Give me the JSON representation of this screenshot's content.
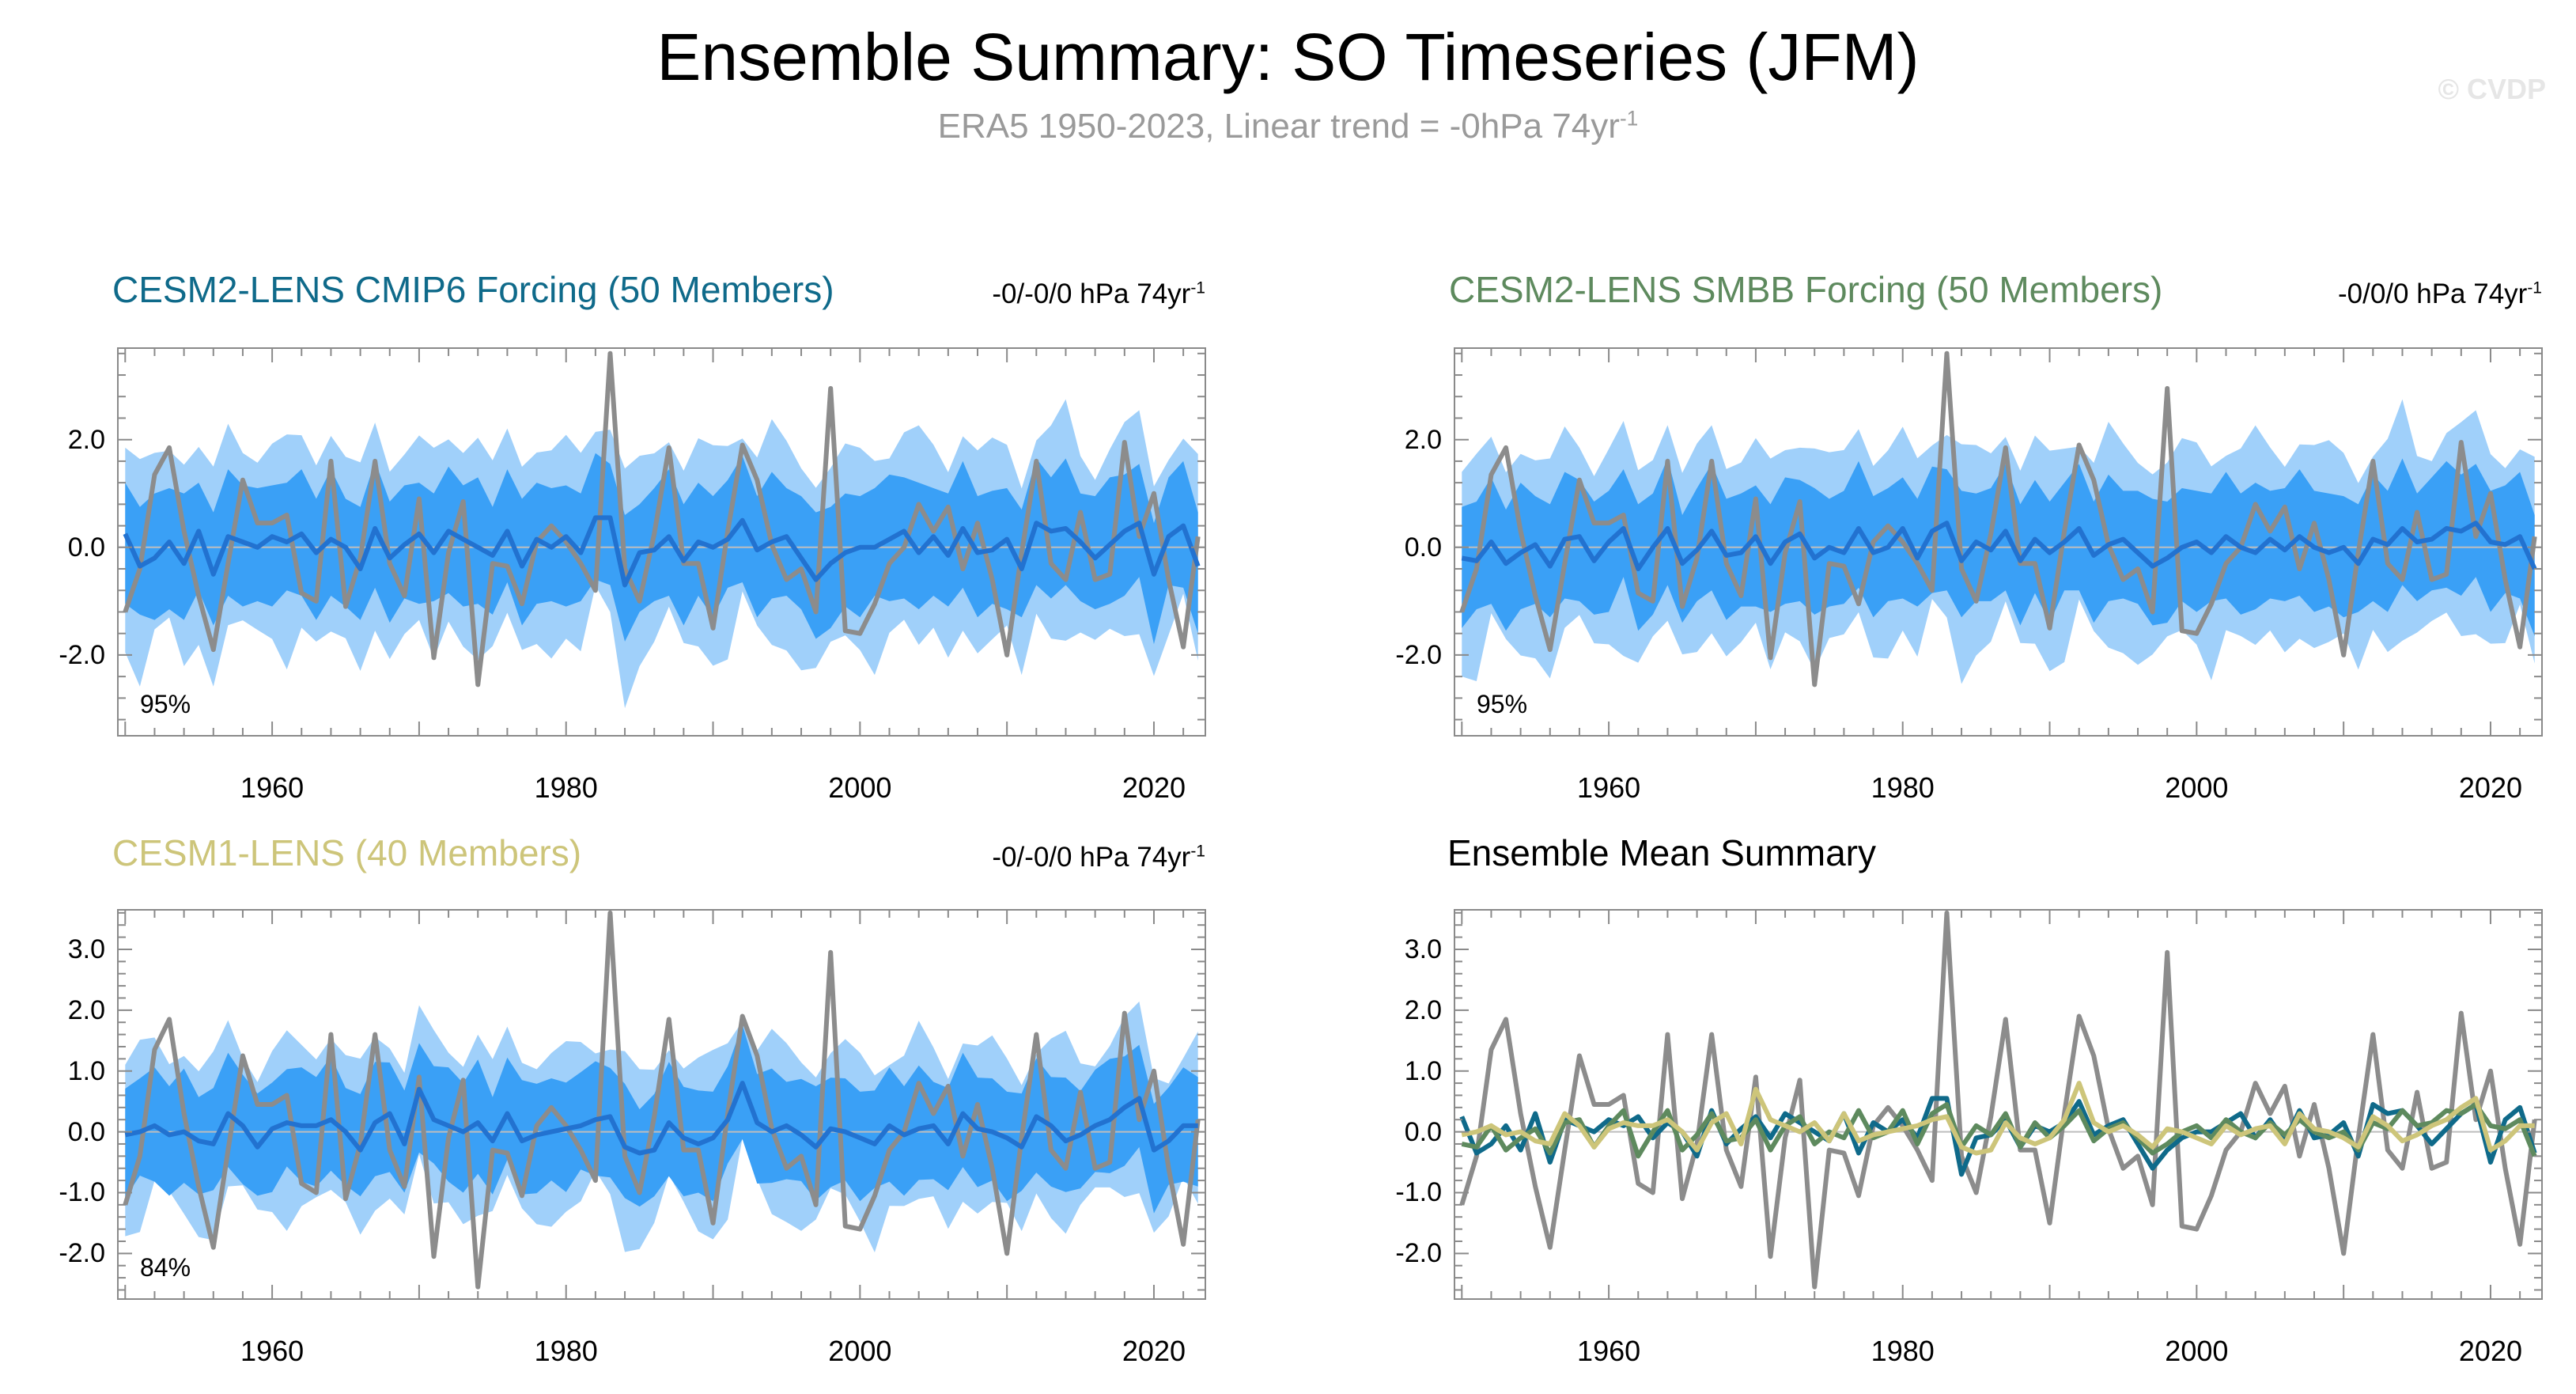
{
  "page": {
    "title": "Ensemble Summary: SO Timeseries (JFM)",
    "subtitle_main": "ERA5 1950-2023, Linear trend = -0hPa 74yr",
    "subtitle_sup": "-1",
    "copyright": "© CVDP"
  },
  "colors": {
    "band95": "#a0d0fa",
    "band75": "#3aa0f6",
    "ens_mean": "#2272d0",
    "obs": "#8c8c8c",
    "cmip6": "#0f6a8a",
    "smbb": "#5e8a5e",
    "cesm1": "#cdc57a"
  },
  "chart_data": [
    {
      "id": "cmip6",
      "type": "area",
      "title": "CESM2-LENS CMIP6 Forcing (50 Members)",
      "trend_text": "-0/-0/0 hPa 74yr",
      "trend_sup": "-1",
      "percent_label": "95%",
      "xlim": [
        1949.5,
        2023.5
      ],
      "ylim": [
        -3.5,
        3.7
      ],
      "yticks": [
        -2.0,
        0.0,
        2.0
      ],
      "ytick_labels": [
        "-2.0",
        "0.0",
        "2.0"
      ],
      "xticks": [
        1960,
        1980,
        2000,
        2020
      ],
      "xtick_labels": [
        "1960",
        "1980",
        "2000",
        "2020"
      ],
      "start_year": 1950,
      "obs": [
        -1.2,
        -0.4,
        1.35,
        1.85,
        0.3,
        -0.9,
        -1.9,
        -0.3,
        1.25,
        0.45,
        0.45,
        0.6,
        -0.85,
        -1.0,
        1.6,
        -1.1,
        -0.2,
        1.6,
        -0.3,
        -0.9,
        0.9,
        -2.05,
        -0.1,
        0.85,
        -2.55,
        -0.3,
        -0.35,
        -1.05,
        0.1,
        0.4,
        0.1,
        -0.3,
        -0.8,
        3.6,
        -0.4,
        -1.0,
        0.25,
        1.85,
        -0.3,
        -0.3,
        -1.5,
        0.3,
        1.9,
        1.25,
        0.05,
        -0.6,
        -0.4,
        -1.2,
        2.95,
        -1.55,
        -1.6,
        -1.05,
        -0.3,
        0.0,
        0.8,
        0.3,
        0.75,
        -0.4,
        0.45,
        -0.6,
        -2.0,
        -0.1,
        1.6,
        -0.3,
        -0.6,
        0.65,
        -0.6,
        -0.5,
        1.95,
        0.2,
        1.0,
        -0.6,
        -1.85,
        0.2
      ],
      "mean": [
        0.25,
        -0.35,
        -0.2,
        0.1,
        -0.3,
        0.3,
        -0.5,
        0.2,
        0.1,
        0.0,
        0.2,
        0.1,
        0.25,
        -0.1,
        0.15,
        0.0,
        -0.4,
        0.35,
        -0.2,
        0.05,
        0.25,
        -0.1,
        0.3,
        0.15,
        0.0,
        -0.15,
        0.3,
        -0.35,
        0.15,
        0.0,
        0.2,
        -0.1,
        0.55,
        0.55,
        -0.7,
        -0.1,
        -0.05,
        0.2,
        -0.25,
        0.1,
        0.0,
        0.15,
        0.5,
        -0.05,
        0.1,
        0.2,
        -0.2,
        -0.6,
        -0.3,
        -0.1,
        0.0,
        0.0,
        0.15,
        0.3,
        -0.1,
        0.2,
        -0.15,
        0.35,
        -0.1,
        -0.05,
        0.15,
        -0.4,
        0.45,
        0.3,
        0.35,
        0.1,
        -0.2,
        0.05,
        0.3,
        0.45,
        -0.5,
        0.2,
        0.4,
        -0.35
      ]
    },
    {
      "id": "smbb",
      "type": "area",
      "title": "CESM2-LENS SMBB Forcing (50 Members)",
      "trend_text": "-0/0/0 hPa 74yr",
      "trend_sup": "-1",
      "percent_label": "95%",
      "xlim": [
        1949.5,
        2023.5
      ],
      "ylim": [
        -3.5,
        3.7
      ],
      "yticks": [
        -2.0,
        0.0,
        2.0
      ],
      "ytick_labels": [
        "-2.0",
        "0.0",
        "2.0"
      ],
      "xticks": [
        1960,
        1980,
        2000,
        2020
      ],
      "xtick_labels": [
        "1960",
        "1980",
        "2000",
        "2020"
      ],
      "start_year": 1950,
      "obs": [
        -1.2,
        -0.4,
        1.35,
        1.85,
        0.3,
        -0.9,
        -1.9,
        -0.3,
        1.25,
        0.45,
        0.45,
        0.6,
        -0.85,
        -1.0,
        1.6,
        -1.1,
        -0.2,
        1.6,
        -0.3,
        -0.9,
        0.9,
        -2.05,
        -0.1,
        0.85,
        -2.55,
        -0.3,
        -0.35,
        -1.05,
        0.1,
        0.4,
        0.1,
        -0.3,
        -0.8,
        3.6,
        -0.4,
        -1.0,
        0.25,
        1.85,
        -0.3,
        -0.3,
        -1.5,
        0.3,
        1.9,
        1.25,
        0.05,
        -0.6,
        -0.4,
        -1.2,
        2.95,
        -1.55,
        -1.6,
        -1.05,
        -0.3,
        0.0,
        0.8,
        0.3,
        0.75,
        -0.4,
        0.45,
        -0.6,
        -2.0,
        -0.1,
        1.6,
        -0.3,
        -0.6,
        0.65,
        -0.6,
        -0.5,
        1.95,
        0.2,
        1.0,
        -0.6,
        -1.85,
        0.2
      ],
      "mean": [
        -0.2,
        -0.25,
        0.1,
        -0.3,
        -0.1,
        0.05,
        -0.35,
        0.15,
        0.2,
        -0.25,
        0.1,
        0.35,
        -0.4,
        0.0,
        0.35,
        -0.3,
        -0.05,
        0.3,
        -0.15,
        -0.1,
        0.2,
        -0.3,
        0.1,
        0.25,
        -0.2,
        0.0,
        -0.1,
        0.35,
        -0.1,
        0.0,
        0.35,
        -0.2,
        0.3,
        0.45,
        -0.25,
        0.1,
        -0.05,
        0.3,
        -0.25,
        0.15,
        -0.1,
        0.1,
        0.35,
        -0.15,
        0.05,
        0.15,
        -0.1,
        -0.35,
        -0.2,
        0.0,
        0.1,
        -0.1,
        0.2,
        0.0,
        -0.1,
        0.15,
        -0.05,
        0.2,
        0.0,
        -0.1,
        0.0,
        -0.3,
        0.15,
        0.05,
        0.35,
        0.1,
        0.15,
        0.35,
        0.3,
        0.45,
        0.1,
        0.05,
        0.2,
        -0.4
      ]
    },
    {
      "id": "cesm1",
      "type": "area",
      "title": "CESM1-LENS (40 Members)",
      "trend_text": "-0/-0/0 hPa 74yr",
      "trend_sup": "-1",
      "percent_label": "84%",
      "xlim": [
        1949.5,
        2023.5
      ],
      "ylim": [
        -2.75,
        3.65
      ],
      "yticks": [
        -2.0,
        -1.0,
        0.0,
        1.0,
        2.0,
        3.0
      ],
      "ytick_labels": [
        "-2.0",
        "-1.0",
        "0.0",
        "1.0",
        "2.0",
        "3.0"
      ],
      "xticks": [
        1960,
        1980,
        2000,
        2020
      ],
      "xtick_labels": [
        "1960",
        "1980",
        "2000",
        "2020"
      ],
      "start_year": 1950,
      "obs": [
        -1.2,
        -0.4,
        1.35,
        1.85,
        0.3,
        -0.9,
        -1.9,
        -0.3,
        1.25,
        0.45,
        0.45,
        0.6,
        -0.85,
        -1.0,
        1.6,
        -1.1,
        -0.2,
        1.6,
        -0.3,
        -0.9,
        0.9,
        -2.05,
        -0.1,
        0.85,
        -2.55,
        -0.3,
        -0.35,
        -1.05,
        0.1,
        0.4,
        0.1,
        -0.3,
        -0.8,
        3.6,
        -0.4,
        -1.0,
        0.25,
        1.85,
        -0.3,
        -0.3,
        -1.5,
        0.3,
        1.9,
        1.25,
        0.05,
        -0.6,
        -0.4,
        -1.2,
        2.95,
        -1.55,
        -1.6,
        -1.05,
        -0.3,
        0.0,
        0.8,
        0.3,
        0.75,
        -0.4,
        0.45,
        -0.6,
        -2.0,
        -0.1,
        1.6,
        -0.3,
        -0.6,
        0.65,
        -0.6,
        -0.5,
        1.95,
        0.2,
        1.0,
        -0.6,
        -1.85,
        0.2
      ],
      "mean": [
        -0.05,
        0.0,
        0.1,
        -0.05,
        0.0,
        -0.15,
        -0.2,
        0.3,
        0.1,
        -0.25,
        0.05,
        0.15,
        0.1,
        0.1,
        0.2,
        0.0,
        -0.3,
        0.15,
        0.3,
        -0.2,
        0.7,
        0.2,
        0.1,
        0.0,
        0.15,
        -0.15,
        0.3,
        -0.15,
        -0.05,
        0.0,
        0.05,
        0.1,
        0.2,
        0.25,
        -0.25,
        -0.35,
        -0.3,
        0.15,
        -0.1,
        -0.2,
        -0.1,
        0.2,
        0.8,
        0.15,
        0.0,
        0.1,
        -0.05,
        -0.25,
        0.05,
        0.0,
        -0.1,
        -0.2,
        0.1,
        -0.05,
        0.05,
        0.1,
        -0.2,
        0.3,
        0.05,
        0.0,
        -0.1,
        -0.25,
        0.25,
        0.1,
        -0.15,
        -0.05,
        0.1,
        0.2,
        0.4,
        0.55,
        -0.3,
        -0.15,
        0.1,
        0.1
      ]
    },
    {
      "id": "summary",
      "type": "line",
      "title": "Ensemble Mean Summary",
      "xlim": [
        1949.5,
        2023.5
      ],
      "ylim": [
        -2.75,
        3.65
      ],
      "yticks": [
        -2.0,
        -1.0,
        0.0,
        1.0,
        2.0,
        3.0
      ],
      "ytick_labels": [
        "-2.0",
        "-1.0",
        "0.0",
        "1.0",
        "2.0",
        "3.0"
      ],
      "xticks": [
        1960,
        1980,
        2000,
        2020
      ],
      "xtick_labels": [
        "1960",
        "1980",
        "2000",
        "2020"
      ],
      "start_year": 1950,
      "series": [
        {
          "name": "ERA5",
          "color": "#8c8c8c"
        },
        {
          "name": "CESM2-LENS CMIP6 Forcing",
          "color": "#0f6a8a"
        },
        {
          "name": "CESM2-LENS SMBB Forcing",
          "color": "#5e8a5e"
        },
        {
          "name": "CESM1-LENS",
          "color": "#cdc57a"
        }
      ]
    }
  ]
}
